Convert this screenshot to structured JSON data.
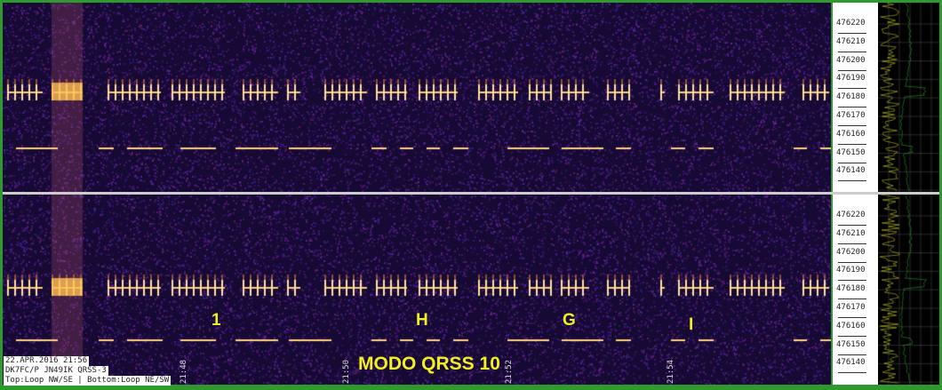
{
  "caption": {
    "line1": "22.APR.2016 21:56",
    "line2": "DK7FC/P JN49IK QRSS-3",
    "line3": "Top:Loop NW/SE | Bottom:Loop NE/SW"
  },
  "title": "MODO QRSS 10",
  "letters": [
    "1",
    "H",
    "G",
    "I"
  ],
  "freq_ticks": [
    "476220",
    "476210",
    "476200",
    "476190",
    "476180",
    "476170",
    "476160",
    "476150",
    "476140"
  ],
  "time_labels": [
    "21:48",
    "21:50",
    "21:52",
    "21:54"
  ],
  "colors": {
    "frame": "#2e9a2e",
    "background": "#1a0d3a",
    "signal": "#ffd070",
    "spectrum_yellow": "#e8e830",
    "spectrum_green": "#30c030"
  }
}
